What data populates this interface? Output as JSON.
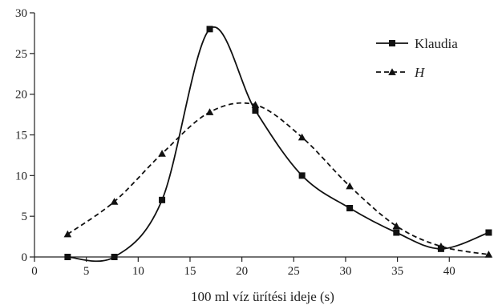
{
  "chart_data": {
    "type": "line",
    "title": "",
    "xlabel": "100 ml víz ürítési ideje (s)",
    "ylabel": "",
    "xlim": [
      0,
      44
    ],
    "ylim": [
      0,
      30
    ],
    "xticks": [
      0,
      5,
      10,
      15,
      20,
      25,
      30,
      35,
      40
    ],
    "yticks": [
      0,
      5,
      10,
      15,
      20,
      25,
      30
    ],
    "grid": false,
    "legend_position": "top-right",
    "series": [
      {
        "name": "Klaudia",
        "style": "solid",
        "marker": "square",
        "color": "#111111",
        "x": [
          3.2,
          7.7,
          12.3,
          16.9,
          21.3,
          25.8,
          30.4,
          34.9,
          39.2,
          43.8
        ],
        "y": [
          0,
          0,
          7,
          28,
          18,
          10,
          6,
          3,
          1,
          3
        ]
      },
      {
        "name": "H",
        "style": "dashed",
        "marker": "triangle",
        "color": "#111111",
        "x": [
          3.2,
          7.7,
          12.3,
          16.9,
          21.3,
          25.8,
          30.4,
          34.9,
          39.2,
          43.8
        ],
        "y": [
          2.8,
          6.8,
          12.7,
          17.8,
          18.7,
          14.7,
          8.7,
          3.8,
          1.3,
          0.3
        ]
      }
    ]
  }
}
